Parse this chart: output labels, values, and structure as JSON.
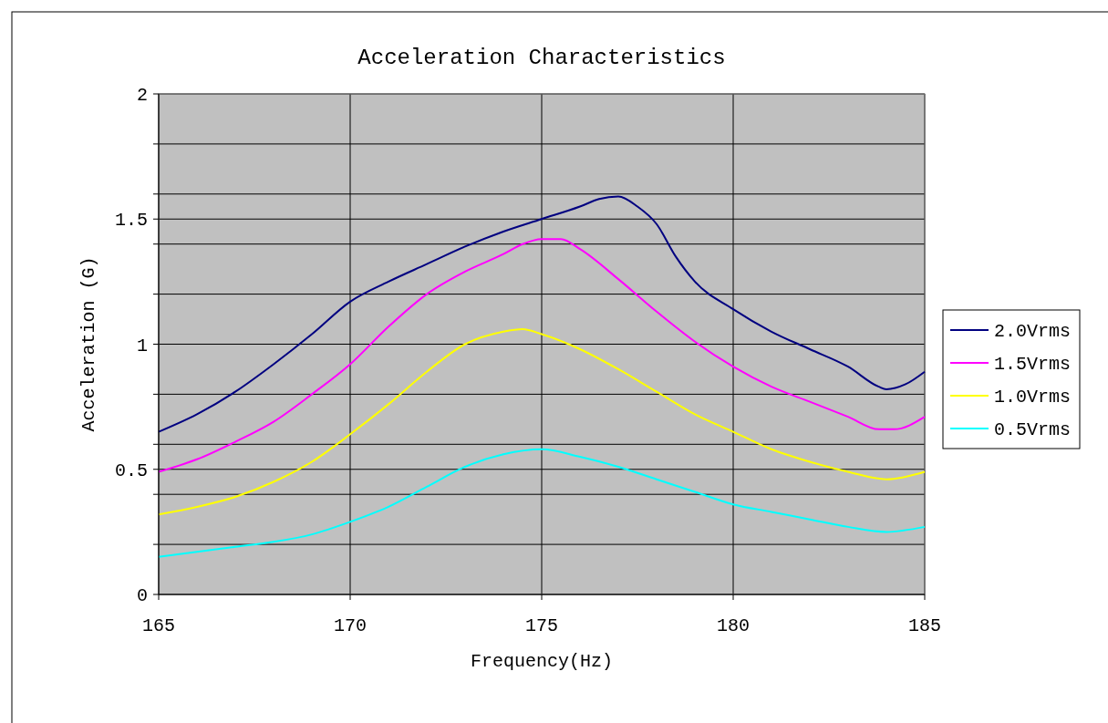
{
  "chart_data": {
    "type": "line",
    "title": "Acceleration Characteristics",
    "xlabel": "Frequency(Hz)",
    "ylabel": "Acceleration (G)",
    "xlim": [
      165,
      185
    ],
    "xticks": [
      165,
      170,
      175,
      180,
      185
    ],
    "ylim": [
      0,
      2
    ],
    "yticks": [
      0,
      {
        "value": 0.2,
        "label": null
      },
      {
        "value": 0.4,
        "label": null
      },
      0.5,
      {
        "value": 0.6,
        "label": null
      },
      {
        "value": 0.8,
        "label": null
      },
      1,
      {
        "value": 1.2,
        "label": null
      },
      {
        "value": 1.4,
        "label": null
      },
      1.5,
      {
        "value": 1.6,
        "label": null
      },
      {
        "value": 1.8,
        "label": null
      },
      2
    ],
    "grid": true,
    "legend": "right",
    "marker": "none",
    "line_style": "solid",
    "series": [
      {
        "name": "2.0Vrms",
        "color": "#000080",
        "x": [
          165,
          166,
          167,
          168,
          169,
          170,
          171,
          172,
          173,
          174,
          175,
          176,
          176.5,
          177,
          177.5,
          178,
          178.5,
          179,
          180,
          181,
          182,
          183,
          183.8,
          184,
          184.5,
          185
        ],
        "values": [
          0.65,
          0.72,
          0.81,
          0.92,
          1.04,
          1.17,
          1.25,
          1.32,
          1.39,
          1.45,
          1.5,
          1.55,
          1.58,
          1.59,
          1.55,
          1.48,
          1.35,
          1.25,
          1.14,
          1.05,
          0.98,
          0.91,
          0.83,
          0.82,
          0.84,
          0.89
        ]
      },
      {
        "name": "1.5Vrms",
        "color": "#ff00ff",
        "x": [
          165,
          166,
          167,
          168,
          169,
          170,
          171,
          172,
          173,
          174,
          174.5,
          175,
          175.5,
          176,
          177,
          178,
          179,
          180,
          181,
          182,
          183,
          183.8,
          184.2,
          185
        ],
        "values": [
          0.49,
          0.54,
          0.61,
          0.69,
          0.8,
          0.92,
          1.07,
          1.2,
          1.29,
          1.36,
          1.4,
          1.42,
          1.42,
          1.38,
          1.26,
          1.13,
          1.01,
          0.91,
          0.83,
          0.77,
          0.71,
          0.66,
          0.66,
          0.71
        ]
      },
      {
        "name": "1.0Vrms",
        "color": "#ffff00",
        "x": [
          165,
          166,
          167,
          168,
          169,
          170,
          171,
          172,
          173,
          174,
          174.5,
          175,
          176,
          177,
          178,
          179,
          180,
          181,
          182,
          183,
          184,
          185
        ],
        "values": [
          0.32,
          0.35,
          0.39,
          0.45,
          0.53,
          0.64,
          0.76,
          0.89,
          1.0,
          1.05,
          1.06,
          1.04,
          0.98,
          0.9,
          0.81,
          0.72,
          0.65,
          0.58,
          0.53,
          0.49,
          0.46,
          0.49
        ]
      },
      {
        "name": "0.5Vrms",
        "color": "#00ffff",
        "x": [
          165,
          166,
          167,
          168,
          169,
          170,
          171,
          172,
          173,
          174,
          175,
          176,
          177,
          178,
          179,
          180,
          181,
          182,
          183,
          184,
          185
        ],
        "values": [
          0.15,
          0.17,
          0.19,
          0.21,
          0.24,
          0.29,
          0.35,
          0.43,
          0.51,
          0.56,
          0.58,
          0.55,
          0.51,
          0.46,
          0.41,
          0.36,
          0.33,
          0.3,
          0.27,
          0.25,
          0.27
        ]
      }
    ]
  }
}
